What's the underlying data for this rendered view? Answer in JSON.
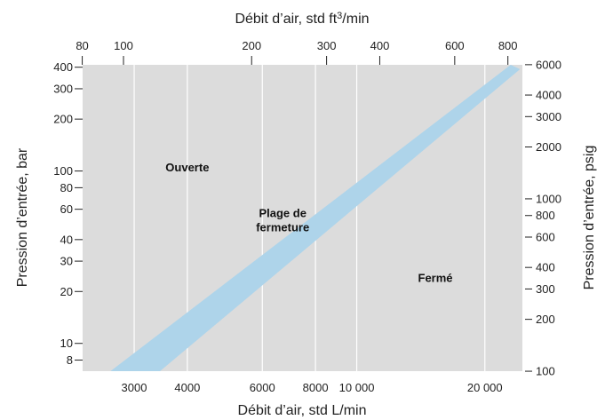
{
  "chart_data": {
    "type": "area",
    "title": "",
    "xlabel_bottom": "Débit d’air, std L/min",
    "xlabel_top_prefix": "Débit d’air, std ft",
    "xlabel_top_sup": "3",
    "xlabel_top_suffix": "/min",
    "ylabel_left": "Pression d’entrée, bar",
    "ylabel_right": "Pression d’entrée, psig",
    "x_scale": "log",
    "y_scale": "log",
    "xlim_lpm": [
      2270,
      24500
    ],
    "ylim_bar": [
      6.9,
      413
    ],
    "grid": "vertical lines at bottom-axis ticks",
    "bottom_ticks": [
      {
        "value": 3000,
        "label": "3000"
      },
      {
        "value": 4000,
        "label": "4000"
      },
      {
        "value": 6000,
        "label": "6000"
      },
      {
        "value": 8000,
        "label": "8000"
      },
      {
        "value": 10000,
        "label": "10 000"
      },
      {
        "value": 20000,
        "label": "20 000"
      }
    ],
    "top_ticks": [
      {
        "value": 80,
        "label": "80"
      },
      {
        "value": 100,
        "label": "100"
      },
      {
        "value": 200,
        "label": "200"
      },
      {
        "value": 300,
        "label": "300"
      },
      {
        "value": 400,
        "label": "400"
      },
      {
        "value": 600,
        "label": "600"
      },
      {
        "value": 800,
        "label": "800"
      }
    ],
    "left_ticks": [
      {
        "value": 400,
        "label": "400"
      },
      {
        "value": 300,
        "label": "300"
      },
      {
        "value": 200,
        "label": "200"
      },
      {
        "value": 100,
        "label": "100"
      },
      {
        "value": 80,
        "label": "80"
      },
      {
        "value": 60,
        "label": "60"
      },
      {
        "value": 40,
        "label": "40"
      },
      {
        "value": 30,
        "label": "30"
      },
      {
        "value": 20,
        "label": "20"
      },
      {
        "value": 10,
        "label": "10"
      },
      {
        "value": 8,
        "label": "8"
      }
    ],
    "right_ticks": [
      {
        "value": 6000,
        "label": "6000"
      },
      {
        "value": 4000,
        "label": "4000"
      },
      {
        "value": 3000,
        "label": "3000"
      },
      {
        "value": 2000,
        "label": "2000"
      },
      {
        "value": 1000,
        "label": "1000"
      },
      {
        "value": 800,
        "label": "800"
      },
      {
        "value": 600,
        "label": "600"
      },
      {
        "value": 400,
        "label": "400"
      },
      {
        "value": 300,
        "label": "300"
      },
      {
        "value": 200,
        "label": "200"
      },
      {
        "value": 100,
        "label": "100"
      }
    ],
    "band": {
      "name": "Plage de fermeture",
      "upper_edge": [
        {
          "x": 2640,
          "y": 6.9
        },
        {
          "x": 23000,
          "y": 413
        }
      ],
      "lower_edge": [
        {
          "x": 3450,
          "y": 6.9
        },
        {
          "x": 24200,
          "y": 390
        }
      ]
    },
    "annotations": [
      {
        "id": "open",
        "text": "Ouverte",
        "x": 4000,
        "y": 105
      },
      {
        "id": "closing-1",
        "text": "Plage de",
        "x": 6700,
        "y": 57
      },
      {
        "id": "closing-2",
        "text": "fermeture",
        "x": 6700,
        "y": 47
      },
      {
        "id": "closed",
        "text": "Fermé",
        "x": 15300,
        "y": 24
      }
    ],
    "colors": {
      "plot_background": "#dcdcdc",
      "band": "#aed4ea",
      "grid": "#ffffff",
      "axis": "#222222"
    }
  }
}
